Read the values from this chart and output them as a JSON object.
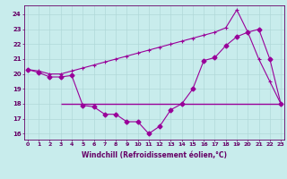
{
  "x": [
    0,
    1,
    2,
    3,
    4,
    5,
    6,
    7,
    8,
    9,
    10,
    11,
    12,
    13,
    14,
    15,
    16,
    17,
    18,
    19,
    20,
    21,
    22,
    23
  ],
  "line1": [
    20.3,
    20.1,
    19.8,
    19.8,
    19.9,
    17.9,
    17.8,
    17.3,
    17.3,
    16.8,
    16.8,
    16.0,
    16.5,
    17.6,
    18.0,
    19.0,
    20.9,
    21.1,
    21.9,
    22.5,
    22.8,
    23.0,
    21.0,
    18.0
  ],
  "line2": [
    20.3,
    20.2,
    20.0,
    20.0,
    20.2,
    20.4,
    20.6,
    20.8,
    21.0,
    21.2,
    21.4,
    21.6,
    21.8,
    22.0,
    22.2,
    22.4,
    22.6,
    22.8,
    23.1,
    24.3,
    22.8,
    21.0,
    19.5,
    18.0
  ],
  "line3_y": 18.0,
  "line3_x_start": 3,
  "line3_x_end": 23,
  "xlim": [
    -0.3,
    23.3
  ],
  "ylim": [
    15.6,
    24.6
  ],
  "yticks": [
    16,
    17,
    18,
    19,
    20,
    21,
    22,
    23,
    24
  ],
  "xticks": [
    0,
    1,
    2,
    3,
    4,
    5,
    6,
    7,
    8,
    9,
    10,
    11,
    12,
    13,
    14,
    15,
    16,
    17,
    18,
    19,
    20,
    21,
    22,
    23
  ],
  "xlabel": "Windchill (Refroidissement éolien,°C)",
  "line_color": "#990099",
  "bg_color": "#c8ecec",
  "grid_color": "#b0d8d8",
  "tick_color": "#660066"
}
